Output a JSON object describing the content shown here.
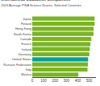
{
  "chart_data": {
    "type": "bar",
    "orientation": "horizontal",
    "title": "International Education Comparison",
    "subtitle": "2003 Average PISA Science Scores, Selected Countries",
    "categories": [
      "Japan",
      "Finland",
      "Hong Kong",
      "South Korea",
      "Canada",
      "France",
      "Ireland",
      "Germany",
      "United States",
      "Russian Federation",
      "Italy",
      "Mexico"
    ],
    "values": [
      548,
      548,
      539,
      538,
      519,
      511,
      505,
      502,
      491,
      489,
      486,
      405
    ],
    "colors": [
      "#7ab520",
      "#7ab520",
      "#7ab520",
      "#7ab520",
      "#7ab520",
      "#7ab520",
      "#7ab520",
      "#7ab520",
      "#00a0a0",
      "#7ab520",
      "#7ab520",
      "#7ab520"
    ],
    "xlim": [
      0,
      560
    ],
    "xticks": [
      0,
      100,
      200,
      300,
      400,
      500
    ],
    "grid": false
  }
}
